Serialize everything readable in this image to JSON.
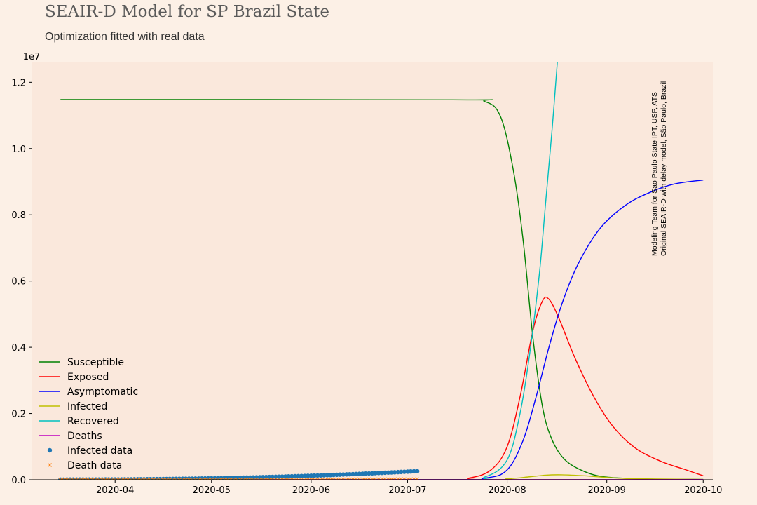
{
  "title": "SEAIR-D Model for SP Brazil State",
  "subtitle": "Optimization fitted with real data",
  "side_note": {
    "line1": "Modeling Team for Sao Paulo State IPT, USP, ATS",
    "line2": "Original SEAIR-D with delay model, São Paulo, Brazil"
  },
  "colors": {
    "background": "#fcf0e6",
    "plot_background": "#fae8dc",
    "susceptible": "#008000",
    "exposed": "#ff0000",
    "asymptomatic": "#0000ff",
    "infected": "#bfbf00",
    "recovered": "#00bfbf",
    "deaths": "#bf00bf",
    "infected_data": "#1f77b4",
    "death_data": "#ff7f0e"
  },
  "chart_data": {
    "type": "line",
    "xlabel": "",
    "ylabel": "",
    "y_offset_label": "1e7",
    "x_range": [
      "2020-03-06",
      "2020-10-04"
    ],
    "ylim": [
      0,
      1.26
    ],
    "y_scale": "1e7",
    "x_ticks": [
      "2020-04",
      "2020-05",
      "2020-06",
      "2020-07",
      "2020-08",
      "2020-09",
      "2020-10"
    ],
    "y_ticks": [
      "0.0",
      "0.2",
      "0.4",
      "0.6",
      "0.8",
      "1.0",
      "1.2"
    ],
    "legend_placement": "lower-left",
    "grid": false,
    "series": [
      {
        "name": "Susceptible",
        "kind": "line",
        "color_key": "susceptible",
        "points": [
          [
            "2020-03-15",
            1.148
          ],
          [
            "2020-07-15",
            1.147
          ],
          [
            "2020-07-25",
            1.142
          ],
          [
            "2020-07-30",
            1.095
          ],
          [
            "2020-08-03",
            0.93
          ],
          [
            "2020-08-06",
            0.72
          ],
          [
            "2020-08-09",
            0.43
          ],
          [
            "2020-08-12",
            0.22
          ],
          [
            "2020-08-15",
            0.12
          ],
          [
            "2020-08-19",
            0.06
          ],
          [
            "2020-08-25",
            0.025
          ],
          [
            "2020-09-01",
            0.008
          ],
          [
            "2020-09-15",
            0.002
          ],
          [
            "2020-10-01",
            0.001
          ]
        ]
      },
      {
        "name": "Exposed",
        "kind": "line",
        "color_key": "exposed",
        "points": [
          [
            "2020-03-15",
            0.0
          ],
          [
            "2020-07-10",
            0.0
          ],
          [
            "2020-07-20",
            0.005
          ],
          [
            "2020-07-27",
            0.03
          ],
          [
            "2020-08-01",
            0.1
          ],
          [
            "2020-08-05",
            0.25
          ],
          [
            "2020-08-09",
            0.45
          ],
          [
            "2020-08-12",
            0.54
          ],
          [
            "2020-08-14",
            0.545
          ],
          [
            "2020-08-17",
            0.49
          ],
          [
            "2020-08-22",
            0.37
          ],
          [
            "2020-08-28",
            0.25
          ],
          [
            "2020-09-03",
            0.16
          ],
          [
            "2020-09-10",
            0.095
          ],
          [
            "2020-09-18",
            0.055
          ],
          [
            "2020-09-25",
            0.032
          ],
          [
            "2020-10-01",
            0.012
          ]
        ]
      },
      {
        "name": "Asymptomatic",
        "kind": "line",
        "color_key": "asymptomatic",
        "points": [
          [
            "2020-03-15",
            0.0
          ],
          [
            "2020-07-10",
            0.0
          ],
          [
            "2020-07-25",
            0.005
          ],
          [
            "2020-08-01",
            0.03
          ],
          [
            "2020-08-06",
            0.12
          ],
          [
            "2020-08-10",
            0.25
          ],
          [
            "2020-08-14",
            0.4
          ],
          [
            "2020-08-18",
            0.53
          ],
          [
            "2020-08-23",
            0.65
          ],
          [
            "2020-08-30",
            0.76
          ],
          [
            "2020-09-07",
            0.83
          ],
          [
            "2020-09-15",
            0.87
          ],
          [
            "2020-09-22",
            0.893
          ],
          [
            "2020-10-01",
            0.905
          ]
        ]
      },
      {
        "name": "Infected",
        "kind": "line",
        "color_key": "infected",
        "points": [
          [
            "2020-03-15",
            0.0
          ],
          [
            "2020-07-20",
            0.0
          ],
          [
            "2020-08-01",
            0.003
          ],
          [
            "2020-08-08",
            0.009
          ],
          [
            "2020-08-13",
            0.014
          ],
          [
            "2020-08-18",
            0.015
          ],
          [
            "2020-08-25",
            0.012
          ],
          [
            "2020-09-01",
            0.007
          ],
          [
            "2020-09-10",
            0.003
          ],
          [
            "2020-10-01",
            0.001
          ]
        ]
      },
      {
        "name": "Recovered",
        "kind": "line",
        "color_key": "recovered",
        "points": [
          [
            "2020-03-15",
            0.0
          ],
          [
            "2020-07-15",
            0.0
          ],
          [
            "2020-07-25",
            0.008
          ],
          [
            "2020-08-01",
            0.06
          ],
          [
            "2020-08-05",
            0.2
          ],
          [
            "2020-08-08",
            0.38
          ],
          [
            "2020-08-11",
            0.62
          ],
          [
            "2020-08-13",
            0.84
          ],
          [
            "2020-08-15",
            1.06
          ],
          [
            "2020-08-16.6",
            1.26
          ]
        ]
      },
      {
        "name": "Deaths",
        "kind": "line",
        "color_key": "deaths",
        "points": [
          [
            "2020-03-15",
            0.0
          ],
          [
            "2020-10-01",
            0.0005
          ]
        ]
      },
      {
        "name": "Infected data",
        "kind": "dots",
        "color_key": "infected_data",
        "start": "2020-03-15",
        "end": "2020-07-04",
        "start_value": 0.0005,
        "end_value": 0.026
      },
      {
        "name": "Death data",
        "kind": "crosses",
        "color_key": "death_data",
        "start": "2020-03-15",
        "end": "2020-07-04",
        "start_value": 0.0,
        "end_value": 0.0015
      }
    ]
  }
}
